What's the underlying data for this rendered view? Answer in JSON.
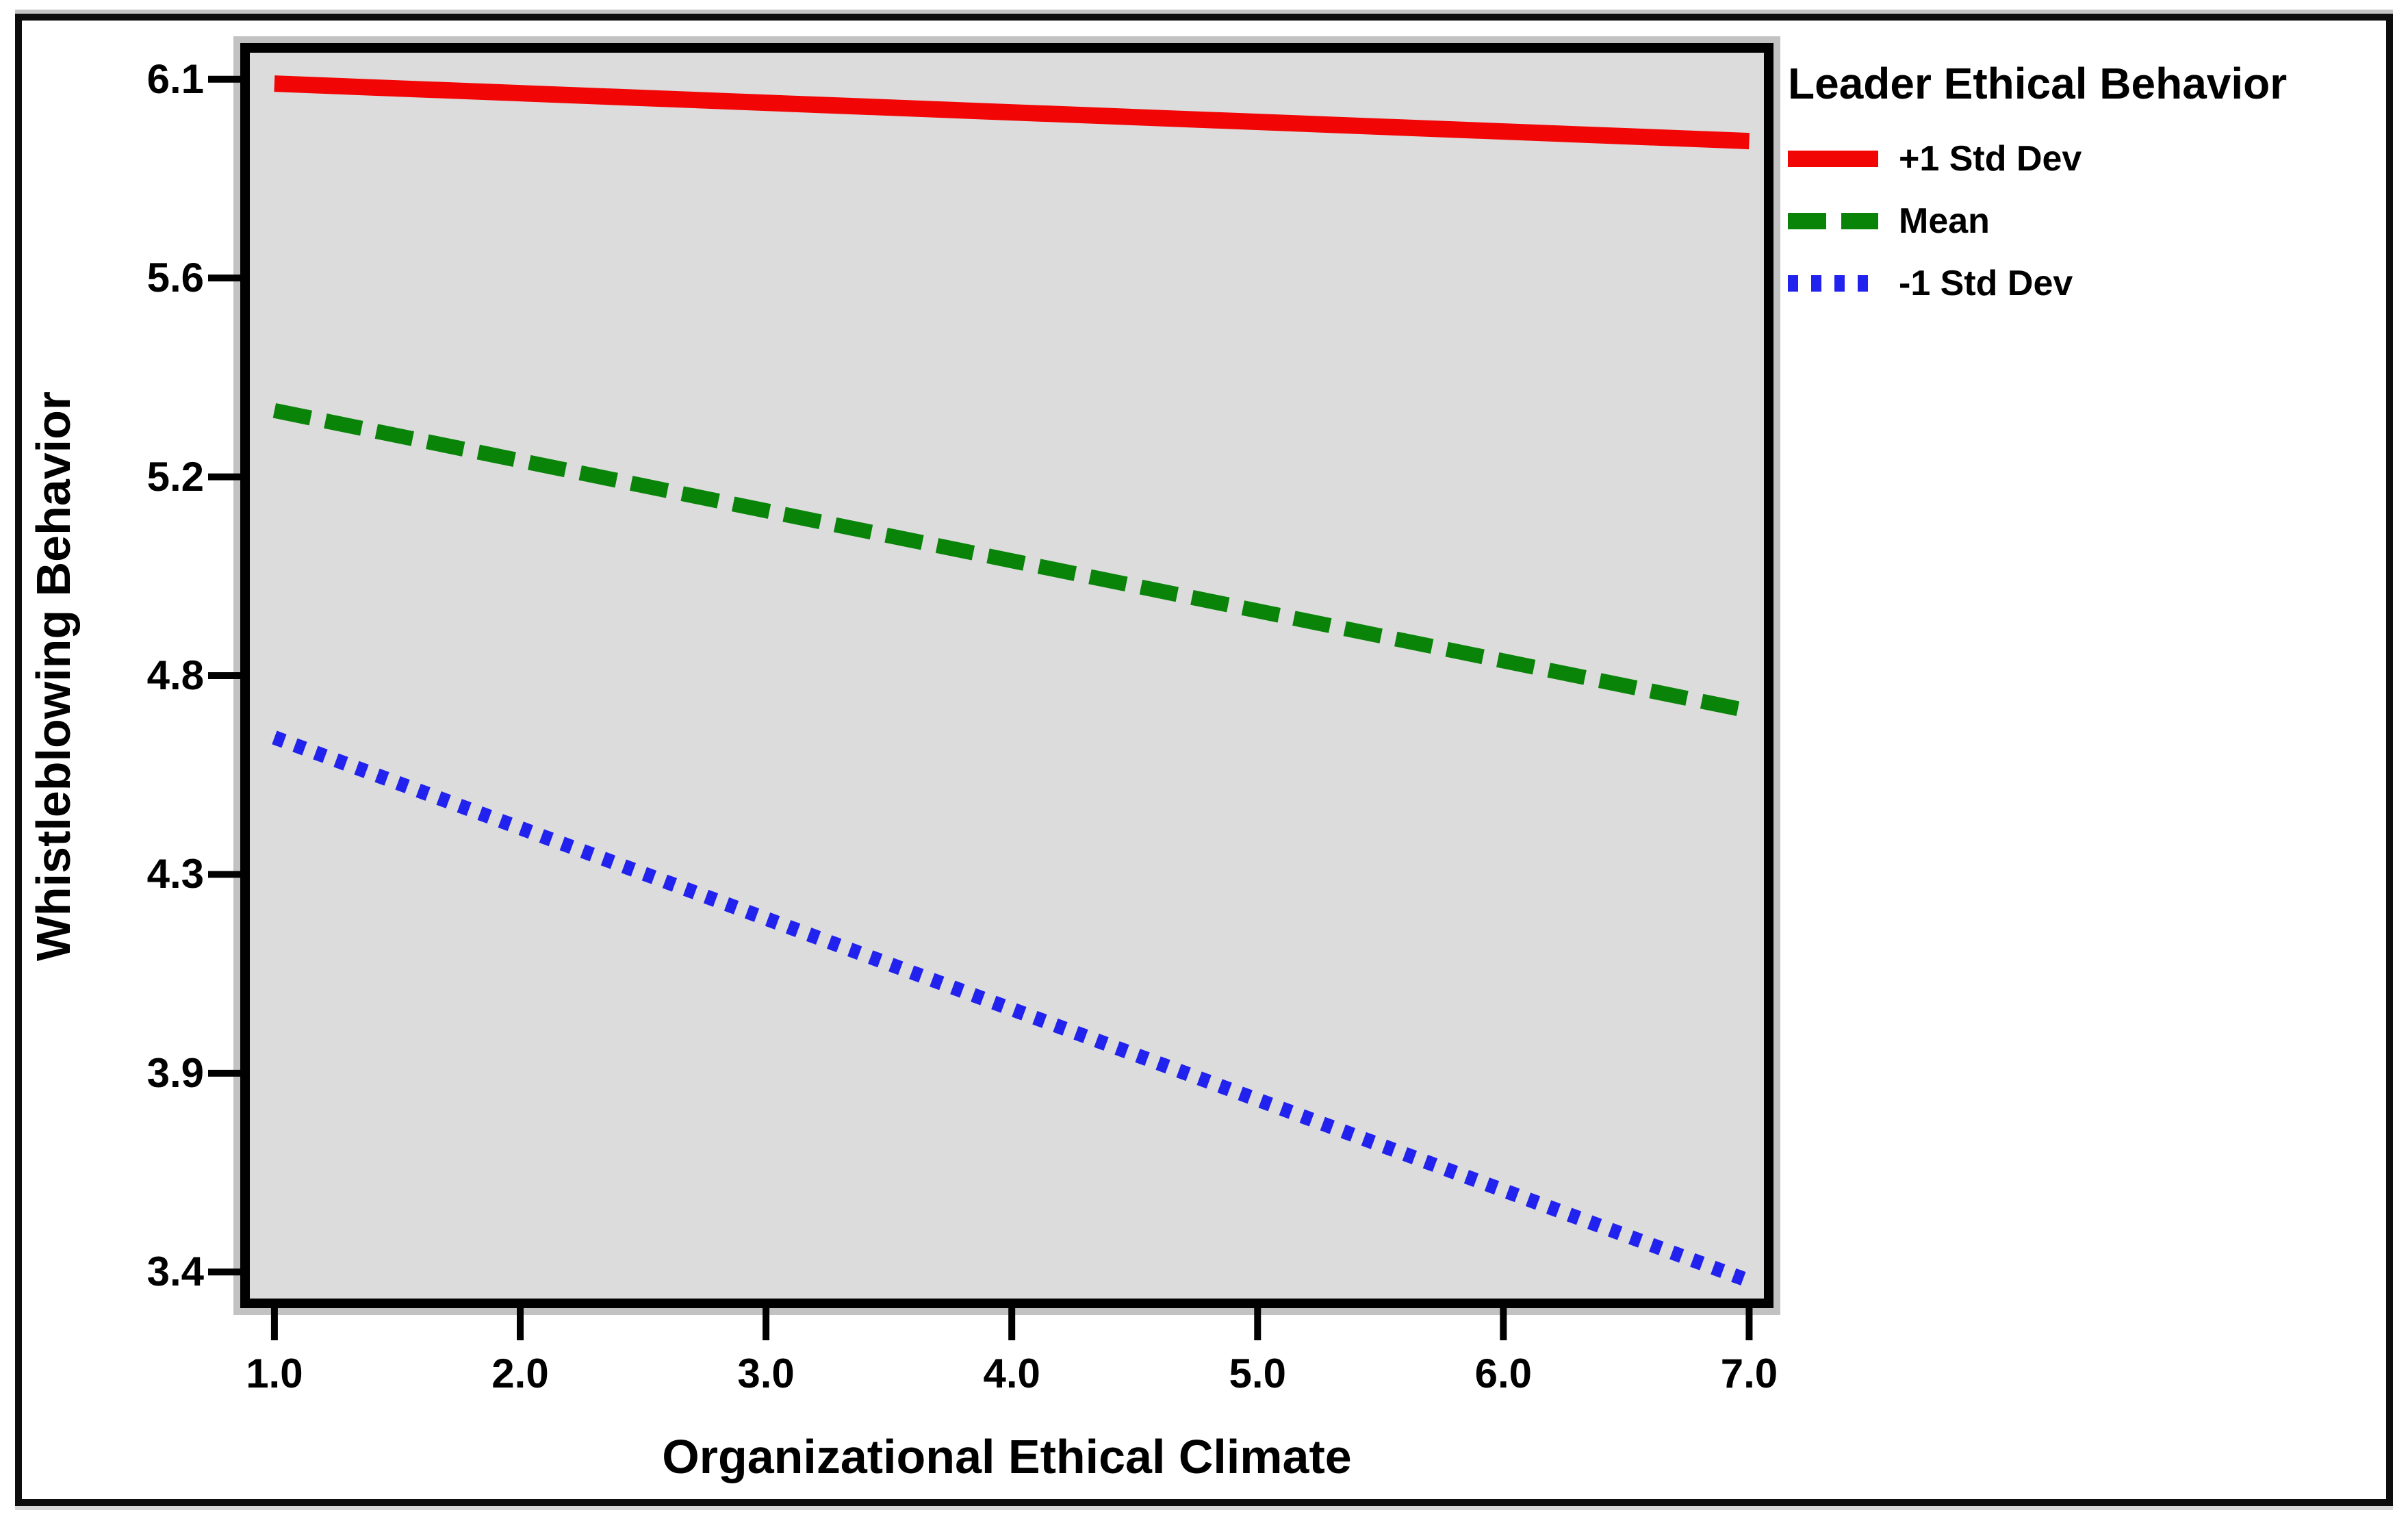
{
  "figure": {
    "background": "#ffffff",
    "border_color": "#0d0d0d"
  },
  "chart_data": {
    "type": "line",
    "title": "",
    "xlabel": "Organizational Ethical Climate",
    "ylabel": "Whistleblowing Behavior",
    "xlim": [
      0.9,
      7.06
    ],
    "ylim": [
      3.34,
      6.16
    ],
    "grid": false,
    "plot_background": "#dcdcdc",
    "frame_color": "#000000",
    "tick_color": "#000000",
    "x_ticks": {
      "values": [
        1,
        2,
        3,
        4,
        5,
        6,
        7
      ],
      "labels": [
        "1.0",
        "2.0",
        "3.0",
        "4.0",
        "5.0",
        "6.0",
        "7.0"
      ]
    },
    "y_ticks": {
      "values": [
        6.1,
        5.65,
        5.2,
        4.75,
        4.3,
        3.85,
        3.4
      ],
      "labels": [
        "6.1",
        "5.6",
        "5.2",
        "4.8",
        "4.3",
        "3.9",
        "3.4"
      ]
    },
    "legend": {
      "title": "Leader Ethical Behavior",
      "position": "right"
    },
    "series": [
      {
        "name": "+1 Std Dev",
        "style": "solid",
        "color": "#f20505",
        "x": [
          1,
          7
        ],
        "values": [
          6.09,
          5.96
        ]
      },
      {
        "name": "Mean",
        "style": "dashed",
        "color": "#098409",
        "x": [
          1,
          7
        ],
        "values": [
          5.35,
          4.67
        ]
      },
      {
        "name": "-1 Std Dev",
        "style": "dotted",
        "color": "#2222ee",
        "x": [
          1,
          7
        ],
        "values": [
          4.61,
          3.38
        ]
      }
    ]
  }
}
